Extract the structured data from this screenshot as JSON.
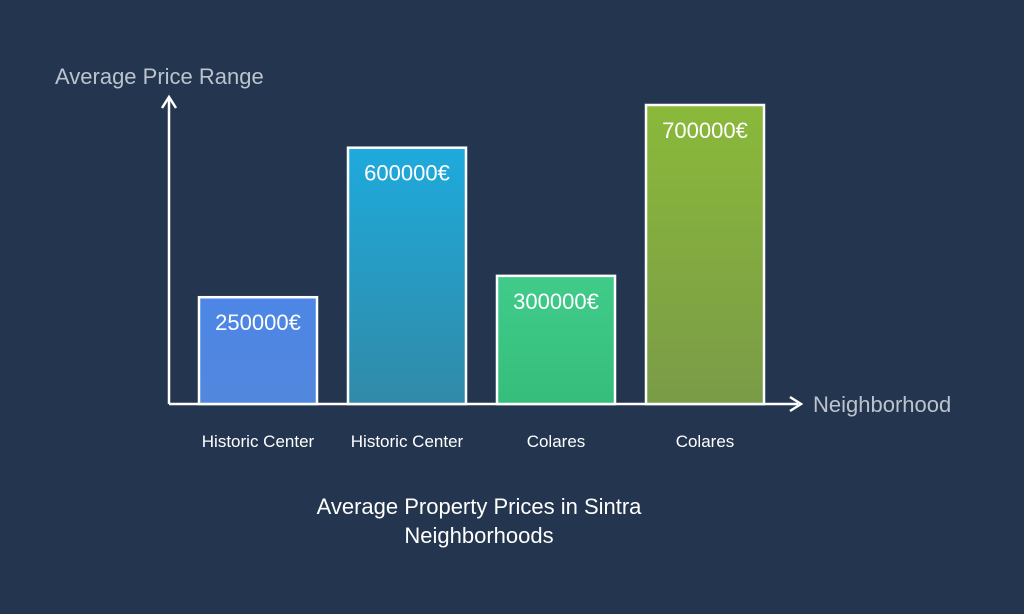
{
  "chart_data": {
    "type": "bar",
    "title_lines": [
      "Average Property Prices in Sintra",
      "Neighborhoods"
    ],
    "xlabel": "Neighborhood",
    "ylabel": "Average Price Range",
    "categories": [
      "Historic Center",
      "Historic Center",
      "Colares",
      "Colares"
    ],
    "values": [
      250000,
      600000,
      300000,
      700000
    ],
    "value_labels": [
      "250000€",
      "600000€",
      "300000€",
      "700000€"
    ],
    "ylim": [
      0,
      700000
    ],
    "bar_colors": [
      {
        "top": "#4d86e6",
        "bottom": "#5287dd"
      },
      {
        "top": "#1eaadc",
        "bottom": "#318aa7"
      },
      {
        "top": "#41cb8a",
        "bottom": "#35be7b"
      },
      {
        "top": "#8ab93a",
        "bottom": "#7a9b47"
      }
    ],
    "grid": false
  },
  "colors": {
    "background": "#24354f",
    "axis": "#ffffff",
    "axis_title": "#bcc3cd"
  }
}
